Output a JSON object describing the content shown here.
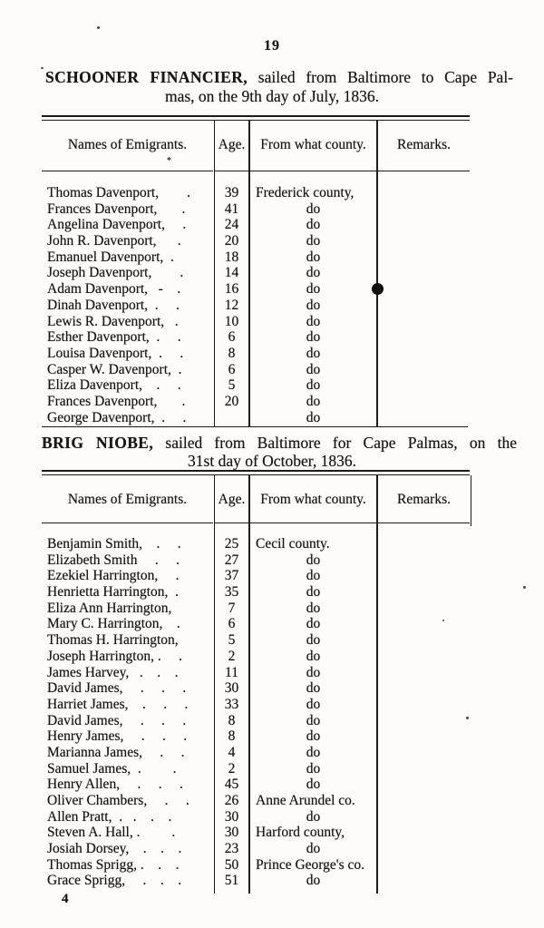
{
  "page": {
    "number": "19",
    "signature_mark": "4"
  },
  "tables": [
    {
      "title_ship": "SCHOONER FINANCIER,",
      "title_rest": " sailed from Baltimore to Cape Pal-",
      "title_line2": "mas, on the 9th day of July, 1836.",
      "columns": [
        "Names of Emigrants.",
        "Age.",
        "From what county.",
        "Remarks."
      ],
      "rows": [
        {
          "name": "Thomas Davenport,        .",
          "age": "39",
          "county": "Frederick county,",
          "remarks": ""
        },
        {
          "name": "Frances Davenport,       .",
          "age": "41",
          "county": "do",
          "remarks": ""
        },
        {
          "name": "Angelina Davenport,     .",
          "age": "24",
          "county": "do",
          "remarks": ""
        },
        {
          "name": "John R. Davenport,      .",
          "age": "20",
          "county": "do",
          "remarks": ""
        },
        {
          "name": "Emanuel Davenport,  .",
          "age": "18",
          "county": "do",
          "remarks": ""
        },
        {
          "name": "Joseph Davenport,        .",
          "age": "14",
          "county": "do",
          "remarks": ""
        },
        {
          "name": "Adam Davenport,   -    .",
          "age": "16",
          "county": "do",
          "remarks": ""
        },
        {
          "name": "Dinah Davenport,  .     .",
          "age": "12",
          "county": "do",
          "remarks": ""
        },
        {
          "name": "Lewis R. Davenport,   .",
          "age": "10",
          "county": "do",
          "remarks": ""
        },
        {
          "name": "Esther Davenport,  .     .",
          "age": "6",
          "county": "do",
          "remarks": ""
        },
        {
          "name": "Louisa Davenport,  .     .",
          "age": "8",
          "county": "do",
          "remarks": ""
        },
        {
          "name": "Casper W. Davenport,  .",
          "age": "6",
          "county": "do",
          "remarks": ""
        },
        {
          "name": "Eliza Davenport,    .     .",
          "age": "5",
          "county": "do",
          "remarks": ""
        },
        {
          "name": "Frances Davenport,       .",
          "age": "20",
          "county": "do",
          "remarks": ""
        },
        {
          "name": "George Davenport,  .     .",
          "age": "",
          "county": "do",
          "remarks": ""
        }
      ]
    },
    {
      "title_ship": "BRIG NIOBE,",
      "title_rest": " sailed from Baltimore for Cape Palmas, on the",
      "title_line2": "31st day of October, 1836.",
      "columns": [
        "Names of Emigrants.",
        "Age.",
        "From what county.",
        "Remarks."
      ],
      "rows": [
        {
          "name": "Benjamin Smith,    .     .",
          "age": "25",
          "county": "Cecil county.",
          "remarks": ""
        },
        {
          "name": "Elizabeth Smith     .     .",
          "age": "27",
          "county": "do",
          "remarks": ""
        },
        {
          "name": "Ezekiel Harrington,     .",
          "age": "37",
          "county": "do",
          "remarks": ""
        },
        {
          "name": "Henrietta Harrington,  .",
          "age": "35",
          "county": "do",
          "remarks": ""
        },
        {
          "name": "Eliza Ann Harrington,",
          "age": "7",
          "county": "do",
          "remarks": ""
        },
        {
          "name": "Mary C. Harrington,    .",
          "age": "6",
          "county": "do",
          "remarks": ""
        },
        {
          "name": "Thomas H. Harrington,",
          "age": "5",
          "county": "do",
          "remarks": ""
        },
        {
          "name": "Joseph Harrington, .     .",
          "age": "2",
          "county": "do",
          "remarks": ""
        },
        {
          "name": "James Harvey,   .    .    .",
          "age": "11",
          "county": "do",
          "remarks": ""
        },
        {
          "name": "David James,     .     .     .",
          "age": "30",
          "county": "do",
          "remarks": ""
        },
        {
          "name": "Harriet James,    .     .     .",
          "age": "33",
          "county": "do",
          "remarks": ""
        },
        {
          "name": "David James,     .     .     .",
          "age": "8",
          "county": "do",
          "remarks": ""
        },
        {
          "name": "Henry James,     .     .     .",
          "age": "8",
          "county": "do",
          "remarks": ""
        },
        {
          "name": "Marianna James,     .     .",
          "age": "4",
          "county": "do",
          "remarks": ""
        },
        {
          "name": "Samuel James,  .         .",
          "age": "2",
          "county": "do",
          "remarks": ""
        },
        {
          "name": "Henry Allen,     .     .     .",
          "age": "45",
          "county": "do",
          "remarks": ""
        },
        {
          "name": "Oliver Chambers,     .     .",
          "age": "26",
          "county": "Anne Arundel co.",
          "remarks": ""
        },
        {
          "name": "Allen Pratt,  .   .    .    .",
          "age": "30",
          "county": "do",
          "remarks": ""
        },
        {
          "name": "Steven A. Hall, .         .",
          "age": "30",
          "county": "Harford county,",
          "remarks": ""
        },
        {
          "name": "Josiah Dorsey,    .    .    .",
          "age": "23",
          "county": "do",
          "remarks": ""
        },
        {
          "name": "Thomas Sprigg, .    .    .",
          "age": "50",
          "county": "Prince George's co.",
          "remarks": ""
        },
        {
          "name": "Grace Sprigg,     .    .    .",
          "age": "51",
          "county": "do",
          "remarks": ""
        }
      ]
    }
  ]
}
